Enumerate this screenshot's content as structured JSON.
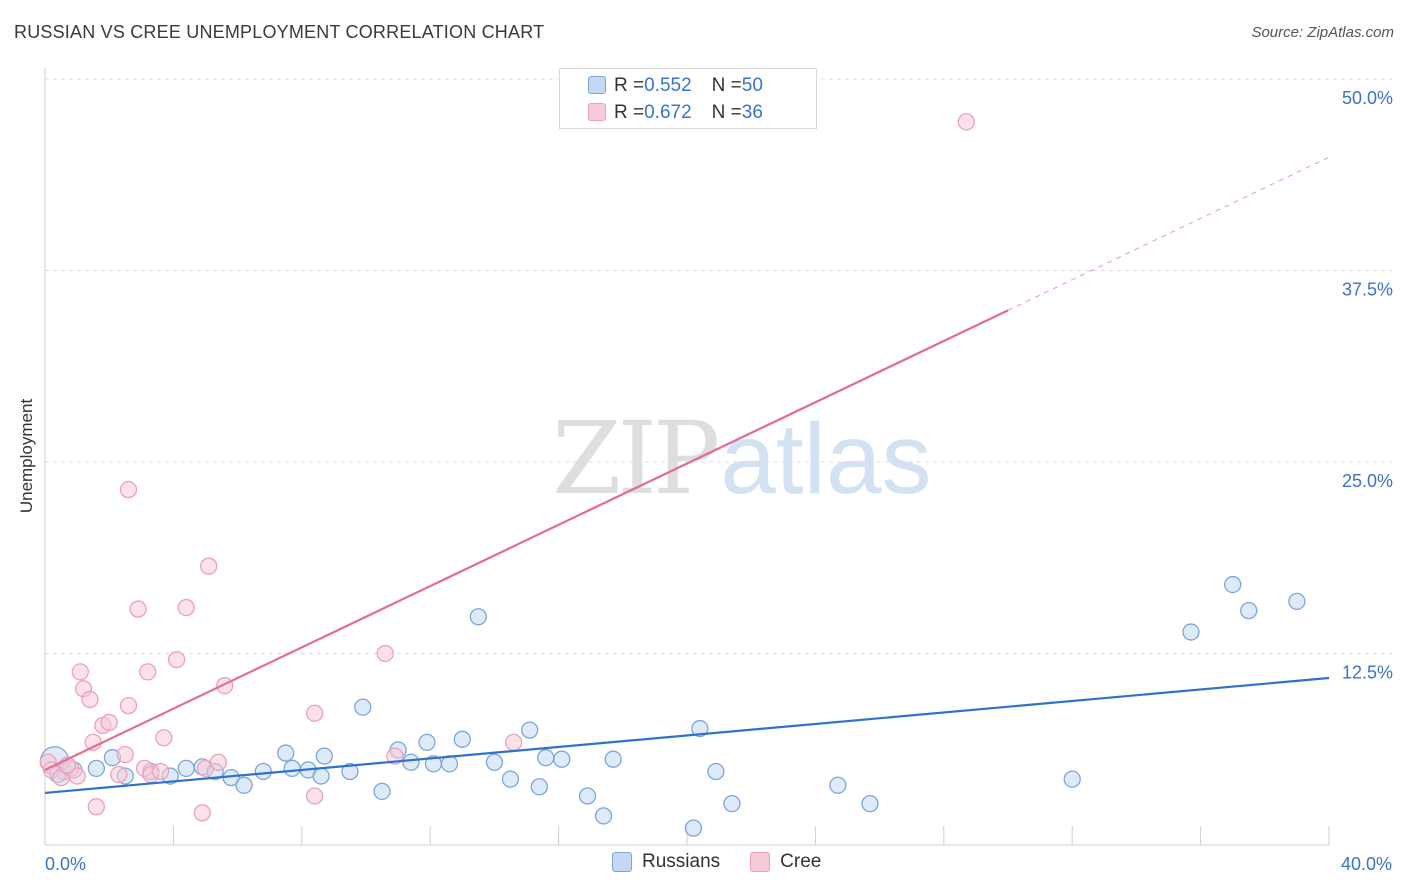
{
  "title": "RUSSIAN VS CREE UNEMPLOYMENT CORRELATION CHART",
  "source": "Source: ZipAtlas.com",
  "watermark": {
    "zip": "ZIP",
    "atlas": "atlas"
  },
  "legend_top": [
    {
      "r_label": "R = ",
      "r_value": "0.552",
      "n_label": "N = ",
      "n_value": "50"
    },
    {
      "r_label": "R = ",
      "r_value": "0.672",
      "n_label": "N = ",
      "n_value": "36"
    }
  ],
  "chart_data": {
    "type": "scatter",
    "title": "RUSSIAN VS CREE UNEMPLOYMENT CORRELATION CHART",
    "xlabel": "",
    "ylabel": "Unemployment",
    "xlim": [
      0,
      40
    ],
    "ylim": [
      0,
      50
    ],
    "x_tick_labels": [
      {
        "value": 0,
        "label": "0.0%"
      },
      {
        "value": 40,
        "label": "40.0%"
      }
    ],
    "y_tick_labels": [
      {
        "value": 12.5,
        "label": "12.5%"
      },
      {
        "value": 25,
        "label": "25.0%"
      },
      {
        "value": 37.5,
        "label": "37.5%"
      },
      {
        "value": 50,
        "label": "50.0%"
      }
    ],
    "grid": true,
    "legend_position": "bottom",
    "series": [
      {
        "name": "Russians",
        "color": "#7aa6de",
        "fill": "#c4d8f2",
        "line_color": "#2f72cc",
        "trend": {
          "x0": 0,
          "y0": 3.4,
          "x1": 40,
          "y1": 10.9
        },
        "points": [
          [
            0.3,
            5.5
          ],
          [
            0.6,
            4.8
          ],
          [
            0.9,
            4.9
          ],
          [
            1.6,
            5.0
          ],
          [
            2.1,
            5.7
          ],
          [
            2.5,
            4.5
          ],
          [
            3.3,
            4.8
          ],
          [
            3.9,
            4.5
          ],
          [
            4.4,
            5.0
          ],
          [
            4.9,
            5.1
          ],
          [
            5.3,
            4.8
          ],
          [
            5.8,
            4.4
          ],
          [
            6.2,
            3.9
          ],
          [
            6.8,
            4.8
          ],
          [
            7.5,
            6.0
          ],
          [
            7.7,
            5.0
          ],
          [
            8.2,
            4.9
          ],
          [
            8.6,
            4.5
          ],
          [
            8.7,
            5.8
          ],
          [
            9.5,
            4.8
          ],
          [
            9.9,
            9.0
          ],
          [
            10.5,
            3.5
          ],
          [
            11.0,
            6.2
          ],
          [
            11.4,
            5.4
          ],
          [
            11.9,
            6.7
          ],
          [
            12.1,
            5.3
          ],
          [
            12.6,
            5.3
          ],
          [
            13.0,
            6.9
          ],
          [
            13.5,
            14.9
          ],
          [
            14.0,
            5.4
          ],
          [
            14.5,
            4.3
          ],
          [
            15.1,
            7.5
          ],
          [
            15.4,
            3.8
          ],
          [
            15.6,
            5.7
          ],
          [
            16.1,
            5.6
          ],
          [
            16.9,
            3.2
          ],
          [
            17.4,
            1.9
          ],
          [
            17.7,
            5.6
          ],
          [
            20.2,
            1.1
          ],
          [
            20.4,
            7.6
          ],
          [
            20.9,
            4.8
          ],
          [
            21.4,
            2.7
          ],
          [
            24.7,
            3.9
          ],
          [
            25.7,
            2.7
          ],
          [
            32.0,
            4.3
          ],
          [
            35.7,
            13.9
          ],
          [
            37.0,
            17.0
          ],
          [
            37.5,
            15.3
          ],
          [
            39.0,
            15.9
          ],
          [
            0.4,
            4.6
          ]
        ]
      },
      {
        "name": "Cree",
        "color": "#eea0b8",
        "fill": "#f7cad7",
        "line_color": "#e36c96",
        "trend": {
          "x0": 0,
          "y0": 4.9,
          "x1": 30.0,
          "y1": 34.9
        },
        "trend_dashed": {
          "x0": 30.0,
          "y0": 34.9,
          "x1": 40,
          "y1": 44.9
        },
        "points": [
          [
            0.1,
            5.4
          ],
          [
            0.2,
            4.9
          ],
          [
            0.5,
            4.4
          ],
          [
            0.8,
            5.0
          ],
          [
            1.0,
            4.5
          ],
          [
            1.1,
            11.3
          ],
          [
            1.2,
            10.2
          ],
          [
            1.4,
            9.5
          ],
          [
            1.5,
            6.7
          ],
          [
            1.6,
            2.5
          ],
          [
            1.8,
            7.8
          ],
          [
            2.0,
            8.0
          ],
          [
            2.3,
            4.6
          ],
          [
            2.5,
            5.9
          ],
          [
            2.6,
            9.1
          ],
          [
            2.6,
            23.2
          ],
          [
            2.9,
            15.4
          ],
          [
            3.1,
            5.0
          ],
          [
            3.2,
            11.3
          ],
          [
            3.3,
            4.6
          ],
          [
            3.6,
            4.8
          ],
          [
            3.7,
            7.0
          ],
          [
            4.1,
            12.1
          ],
          [
            4.4,
            15.5
          ],
          [
            4.9,
            2.1
          ],
          [
            5.0,
            5.0
          ],
          [
            5.1,
            18.2
          ],
          [
            5.4,
            5.4
          ],
          [
            5.6,
            10.4
          ],
          [
            8.4,
            8.6
          ],
          [
            8.4,
            3.2
          ],
          [
            10.6,
            12.5
          ],
          [
            10.9,
            5.8
          ],
          [
            14.6,
            6.7
          ],
          [
            28.7,
            47.2
          ],
          [
            0.7,
            5.2
          ]
        ]
      }
    ]
  }
}
